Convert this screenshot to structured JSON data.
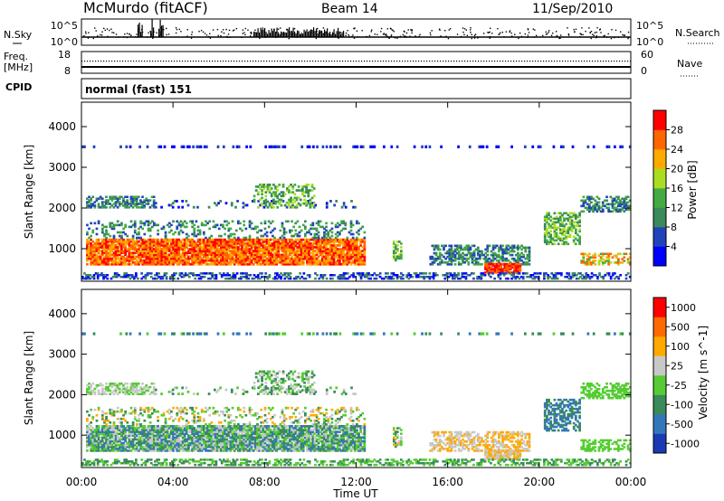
{
  "header": {
    "station": "McMurdo (fitACF)",
    "beam": "Beam 14",
    "date": "11/Sep/2010"
  },
  "top_panels": {
    "nsky_label": "N.Sky",
    "nsky_ticks": [
      "10^5",
      "10^0"
    ],
    "nsearch_label": "N.Search",
    "nsearch_ticks": [
      "10^5",
      "10^0"
    ],
    "freq_label": "Freq.",
    "freq_unit": "[MHz]",
    "freq_ticks": [
      "18",
      "8"
    ],
    "nave_label": "Nave",
    "nave_ticks": [
      "60",
      "0"
    ],
    "cpid_label": "CPID",
    "cpid_value": "normal (fast) 151"
  },
  "chart_data": [
    {
      "type": "heatmap",
      "name": "power",
      "ylabel": "Slant Range [km]",
      "yticks": [
        "1000",
        "2000",
        "3000",
        "4000"
      ],
      "ylim": [
        200,
        4600
      ],
      "colorbar_label": "Power [dB]",
      "colorbar_ticks": [
        "4",
        "8",
        "12",
        "16",
        "20",
        "24",
        "28"
      ],
      "colors": [
        "#0000ff",
        "#2244bb",
        "#3a8a5a",
        "#44aa44",
        "#aadd22",
        "#ffaa00",
        "#ff6600",
        "#ff0000"
      ]
    },
    {
      "type": "heatmap",
      "name": "velocity",
      "ylabel": "Slant Range [km]",
      "yticks": [
        "1000",
        "2000",
        "3000",
        "4000"
      ],
      "ylim": [
        200,
        4600
      ],
      "colorbar_label": "Velocity [m s^-1]",
      "colorbar_ticks": [
        "1000",
        "500",
        "100",
        "25",
        "-25",
        "-100",
        "-500",
        "-1000"
      ],
      "colors": [
        "#1a3ab5",
        "#3377bb",
        "#3a8a5a",
        "#55cc33",
        "#c8c8c8",
        "#ffaa00",
        "#ff6a00",
        "#ff0000"
      ]
    }
  ],
  "xaxis": {
    "label": "Time UT",
    "ticks": [
      "00:00",
      "04:00",
      "08:00",
      "12:00",
      "16:00",
      "20:00",
      "00:00"
    ]
  }
}
